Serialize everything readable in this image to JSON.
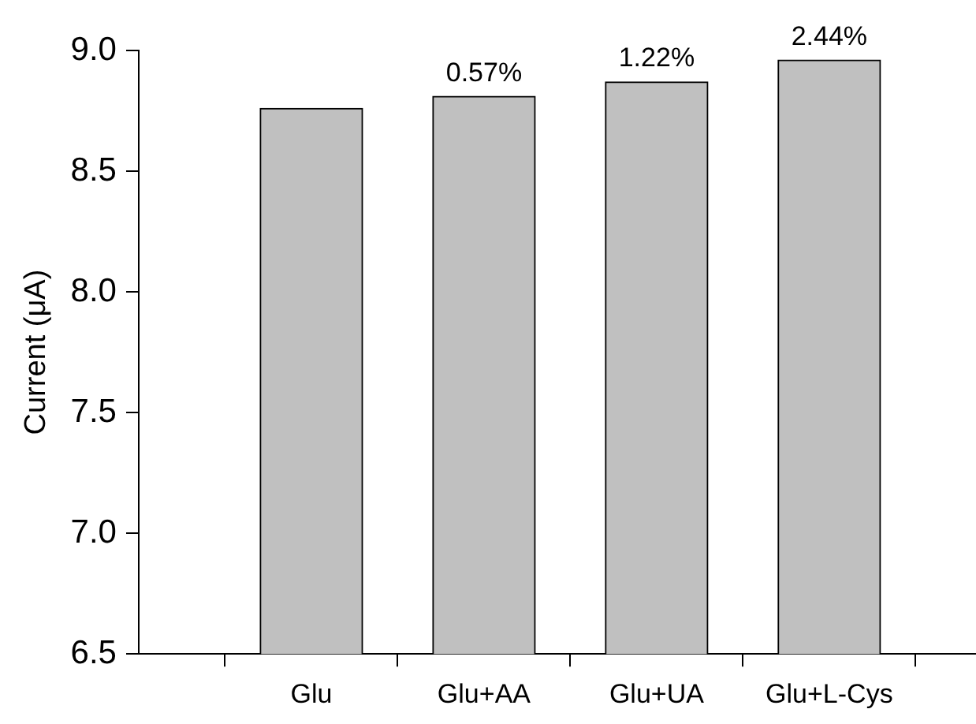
{
  "chart_data": {
    "type": "bar",
    "ylabel": "Current (μA)",
    "categories": [
      "Glu",
      "Glu+AA",
      "Glu+UA",
      "Glu+L-Cys"
    ],
    "values": [
      8.76,
      8.81,
      8.87,
      8.96
    ],
    "color": "#c0c0c0",
    "annotations": [
      {
        "text": "0.57%",
        "x": "Glu+AA",
        "y": 8.81
      },
      {
        "text": "1.22%",
        "x": "Glu+UA",
        "y": 8.87
      },
      {
        "text": "2.44%",
        "x": "Glu+L-Cys",
        "y": 8.96
      }
    ],
    "ylim": [
      6.5,
      9.0
    ],
    "yticks": [
      6.5,
      {
        "value": 7,
        "label": "7.0"
      },
      7.5,
      {
        "value": 8,
        "label": "8.0"
      },
      8.5,
      {
        "value": 9,
        "label": "9.0"
      }
    ],
    "grid": false,
    "legend": false
  }
}
